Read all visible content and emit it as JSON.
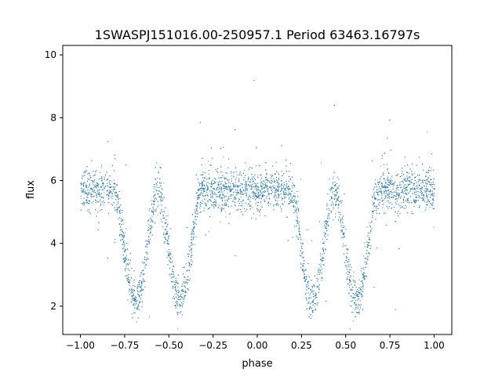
{
  "chart_data": {
    "type": "scatter",
    "title": "1SWASPJ151016.00-250957.1 Period 63463.16797s",
    "xlabel": "phase",
    "ylabel": "flux",
    "xlim": [
      -1.1,
      1.1
    ],
    "ylim": [
      1.1,
      10.3
    ],
    "xticks": [
      -1.0,
      -0.75,
      -0.5,
      -0.25,
      0.0,
      0.25,
      0.5,
      0.75,
      1.0
    ],
    "xtick_labels": [
      "−1.00",
      "−0.75",
      "−0.50",
      "−0.25",
      "0.00",
      "0.25",
      "0.50",
      "0.75",
      "1.00"
    ],
    "yticks": [
      2,
      4,
      6,
      8,
      10
    ],
    "ytick_labels": [
      "2",
      "4",
      "6",
      "8",
      "10"
    ],
    "grid": false,
    "marker_color": "#1f77b4",
    "phase_range": [
      -1.0,
      1.0
    ],
    "baseline_flux": 5.7,
    "eclipses": [
      {
        "phase_center": -0.69,
        "min_flux": 2.2
      },
      {
        "phase_center": -0.44,
        "min_flux": 2.2
      },
      {
        "phase_center": 0.31,
        "min_flux": 2.2
      },
      {
        "phase_center": 0.56,
        "min_flux": 2.2
      }
    ],
    "eclipse_half_width": 0.12
  }
}
